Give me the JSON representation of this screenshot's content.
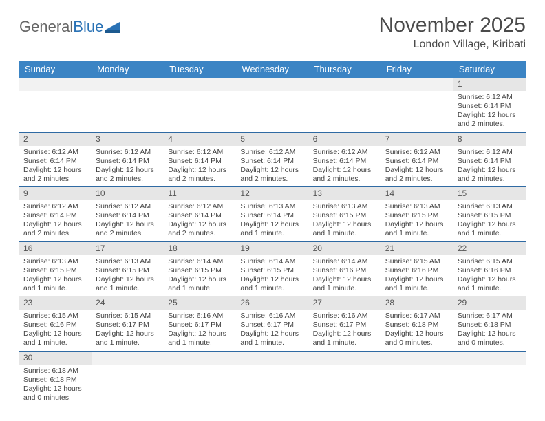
{
  "logo": {
    "part1": "General",
    "part2": "Blue"
  },
  "title": "November 2025",
  "location": "London Village, Kiribati",
  "colors": {
    "header_bg": "#3b84c4",
    "header_text": "#ffffff",
    "daynum_bg": "#e6e6e6",
    "row_border": "#2f6aa3",
    "text": "#444444",
    "logo_gray": "#666666",
    "logo_blue": "#2a72b5"
  },
  "weekdays": [
    "Sunday",
    "Monday",
    "Tuesday",
    "Wednesday",
    "Thursday",
    "Friday",
    "Saturday"
  ],
  "weeks": [
    [
      null,
      null,
      null,
      null,
      null,
      null,
      {
        "n": "1",
        "sr": "Sunrise: 6:12 AM",
        "ss": "Sunset: 6:14 PM",
        "dl": "Daylight: 12 hours and 2 minutes."
      }
    ],
    [
      {
        "n": "2",
        "sr": "Sunrise: 6:12 AM",
        "ss": "Sunset: 6:14 PM",
        "dl": "Daylight: 12 hours and 2 minutes."
      },
      {
        "n": "3",
        "sr": "Sunrise: 6:12 AM",
        "ss": "Sunset: 6:14 PM",
        "dl": "Daylight: 12 hours and 2 minutes."
      },
      {
        "n": "4",
        "sr": "Sunrise: 6:12 AM",
        "ss": "Sunset: 6:14 PM",
        "dl": "Daylight: 12 hours and 2 minutes."
      },
      {
        "n": "5",
        "sr": "Sunrise: 6:12 AM",
        "ss": "Sunset: 6:14 PM",
        "dl": "Daylight: 12 hours and 2 minutes."
      },
      {
        "n": "6",
        "sr": "Sunrise: 6:12 AM",
        "ss": "Sunset: 6:14 PM",
        "dl": "Daylight: 12 hours and 2 minutes."
      },
      {
        "n": "7",
        "sr": "Sunrise: 6:12 AM",
        "ss": "Sunset: 6:14 PM",
        "dl": "Daylight: 12 hours and 2 minutes."
      },
      {
        "n": "8",
        "sr": "Sunrise: 6:12 AM",
        "ss": "Sunset: 6:14 PM",
        "dl": "Daylight: 12 hours and 2 minutes."
      }
    ],
    [
      {
        "n": "9",
        "sr": "Sunrise: 6:12 AM",
        "ss": "Sunset: 6:14 PM",
        "dl": "Daylight: 12 hours and 2 minutes."
      },
      {
        "n": "10",
        "sr": "Sunrise: 6:12 AM",
        "ss": "Sunset: 6:14 PM",
        "dl": "Daylight: 12 hours and 2 minutes."
      },
      {
        "n": "11",
        "sr": "Sunrise: 6:12 AM",
        "ss": "Sunset: 6:14 PM",
        "dl": "Daylight: 12 hours and 2 minutes."
      },
      {
        "n": "12",
        "sr": "Sunrise: 6:13 AM",
        "ss": "Sunset: 6:14 PM",
        "dl": "Daylight: 12 hours and 1 minute."
      },
      {
        "n": "13",
        "sr": "Sunrise: 6:13 AM",
        "ss": "Sunset: 6:15 PM",
        "dl": "Daylight: 12 hours and 1 minute."
      },
      {
        "n": "14",
        "sr": "Sunrise: 6:13 AM",
        "ss": "Sunset: 6:15 PM",
        "dl": "Daylight: 12 hours and 1 minute."
      },
      {
        "n": "15",
        "sr": "Sunrise: 6:13 AM",
        "ss": "Sunset: 6:15 PM",
        "dl": "Daylight: 12 hours and 1 minute."
      }
    ],
    [
      {
        "n": "16",
        "sr": "Sunrise: 6:13 AM",
        "ss": "Sunset: 6:15 PM",
        "dl": "Daylight: 12 hours and 1 minute."
      },
      {
        "n": "17",
        "sr": "Sunrise: 6:13 AM",
        "ss": "Sunset: 6:15 PM",
        "dl": "Daylight: 12 hours and 1 minute."
      },
      {
        "n": "18",
        "sr": "Sunrise: 6:14 AM",
        "ss": "Sunset: 6:15 PM",
        "dl": "Daylight: 12 hours and 1 minute."
      },
      {
        "n": "19",
        "sr": "Sunrise: 6:14 AM",
        "ss": "Sunset: 6:15 PM",
        "dl": "Daylight: 12 hours and 1 minute."
      },
      {
        "n": "20",
        "sr": "Sunrise: 6:14 AM",
        "ss": "Sunset: 6:16 PM",
        "dl": "Daylight: 12 hours and 1 minute."
      },
      {
        "n": "21",
        "sr": "Sunrise: 6:15 AM",
        "ss": "Sunset: 6:16 PM",
        "dl": "Daylight: 12 hours and 1 minute."
      },
      {
        "n": "22",
        "sr": "Sunrise: 6:15 AM",
        "ss": "Sunset: 6:16 PM",
        "dl": "Daylight: 12 hours and 1 minute."
      }
    ],
    [
      {
        "n": "23",
        "sr": "Sunrise: 6:15 AM",
        "ss": "Sunset: 6:16 PM",
        "dl": "Daylight: 12 hours and 1 minute."
      },
      {
        "n": "24",
        "sr": "Sunrise: 6:15 AM",
        "ss": "Sunset: 6:17 PM",
        "dl": "Daylight: 12 hours and 1 minute."
      },
      {
        "n": "25",
        "sr": "Sunrise: 6:16 AM",
        "ss": "Sunset: 6:17 PM",
        "dl": "Daylight: 12 hours and 1 minute."
      },
      {
        "n": "26",
        "sr": "Sunrise: 6:16 AM",
        "ss": "Sunset: 6:17 PM",
        "dl": "Daylight: 12 hours and 1 minute."
      },
      {
        "n": "27",
        "sr": "Sunrise: 6:16 AM",
        "ss": "Sunset: 6:17 PM",
        "dl": "Daylight: 12 hours and 1 minute."
      },
      {
        "n": "28",
        "sr": "Sunrise: 6:17 AM",
        "ss": "Sunset: 6:18 PM",
        "dl": "Daylight: 12 hours and 0 minutes."
      },
      {
        "n": "29",
        "sr": "Sunrise: 6:17 AM",
        "ss": "Sunset: 6:18 PM",
        "dl": "Daylight: 12 hours and 0 minutes."
      }
    ],
    [
      {
        "n": "30",
        "sr": "Sunrise: 6:18 AM",
        "ss": "Sunset: 6:18 PM",
        "dl": "Daylight: 12 hours and 0 minutes."
      },
      null,
      null,
      null,
      null,
      null,
      null
    ]
  ]
}
